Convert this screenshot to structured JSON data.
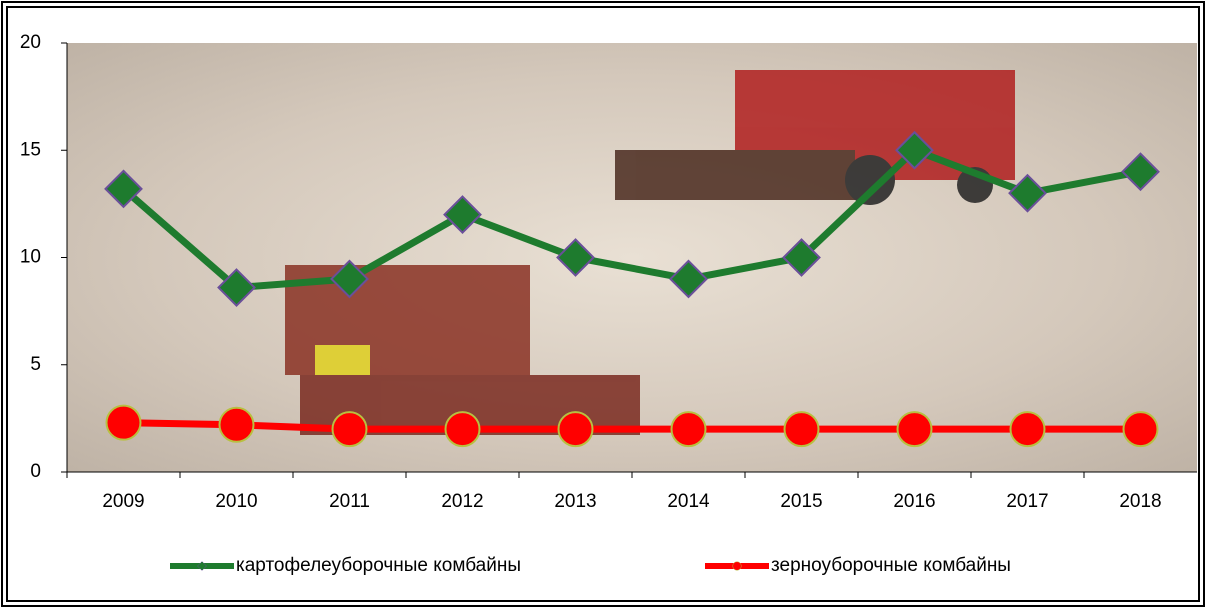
{
  "chart_data": {
    "type": "line",
    "categories": [
      "2009",
      "2010",
      "2011",
      "2012",
      "2013",
      "2014",
      "2015",
      "2016",
      "2017",
      "2018"
    ],
    "series": [
      {
        "name": "картофелеуборочные комбайны",
        "color": "#1e7b2e",
        "values": [
          13.2,
          8.6,
          9,
          12,
          10,
          9,
          10,
          15,
          13,
          14
        ]
      },
      {
        "name": "зерноуборочные комбайны",
        "color": "#ff0000",
        "values": [
          2.3,
          2.2,
          2,
          2,
          2,
          2,
          2,
          2,
          2,
          2
        ]
      }
    ],
    "ylim": [
      0,
      20
    ],
    "yticks": [
      0,
      5,
      10,
      15,
      20
    ],
    "legend": "bottom"
  }
}
